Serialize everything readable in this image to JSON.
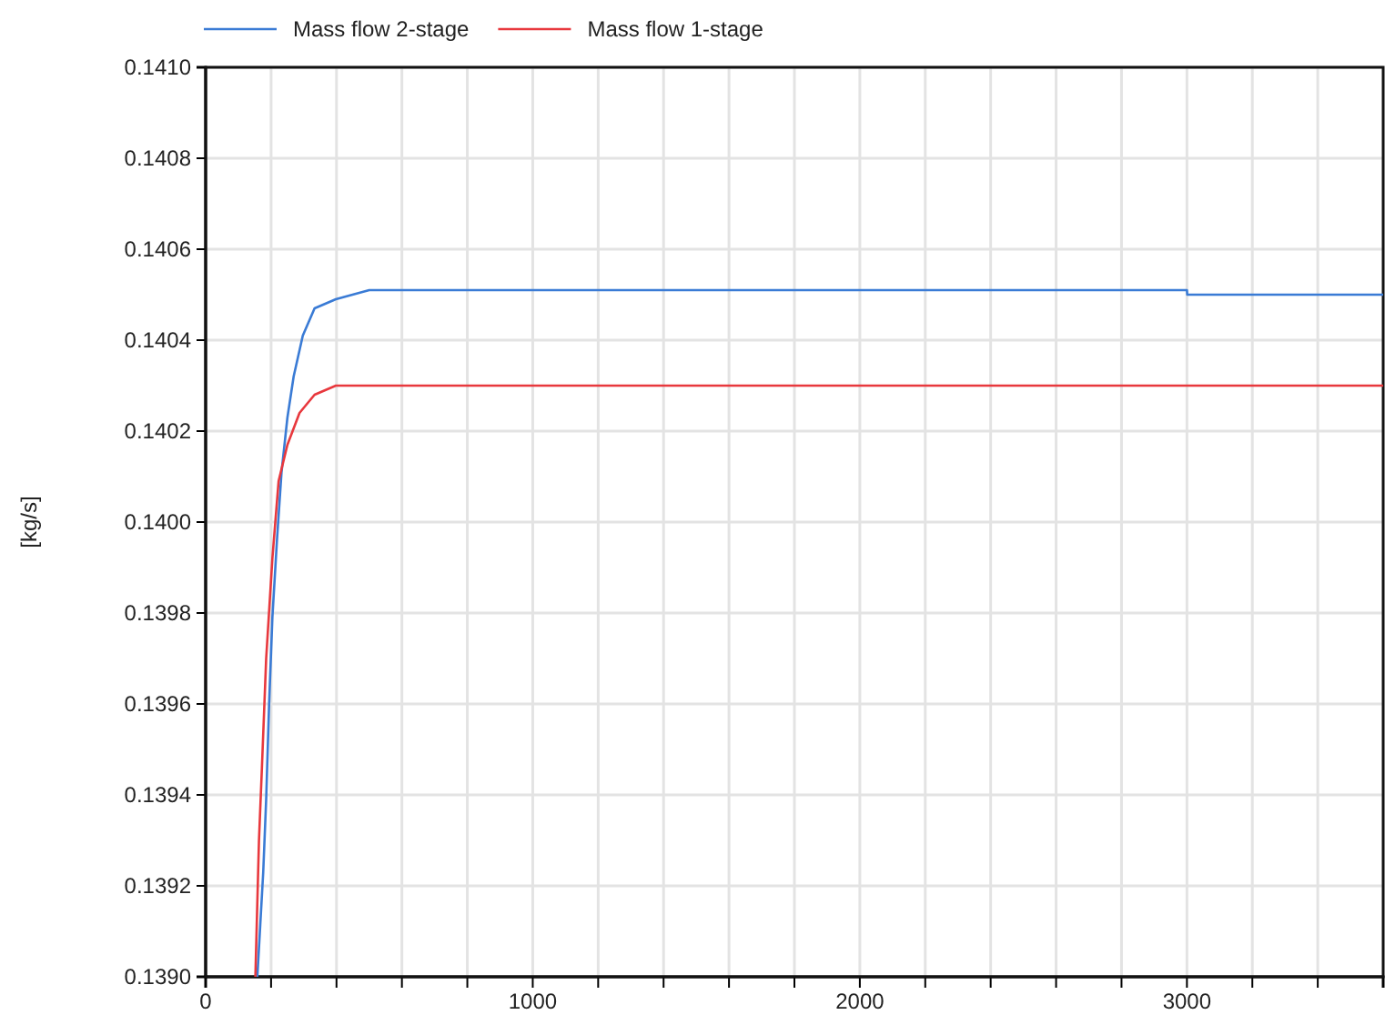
{
  "chart_data": {
    "type": "line",
    "ylabel": "[kg/s]",
    "legend": "top",
    "grid": true,
    "line_style": "solid",
    "marker": "none",
    "xlim": [
      0,
      3600
    ],
    "xticks": [
      0,
      {
        "value": 200,
        "label": null
      },
      {
        "value": 400,
        "label": null
      },
      {
        "value": 600,
        "label": null
      },
      {
        "value": 800,
        "label": null
      },
      1000,
      {
        "value": 1200,
        "label": null
      },
      {
        "value": 1400,
        "label": null
      },
      {
        "value": 1600,
        "label": null
      },
      {
        "value": 1800,
        "label": null
      },
      2000,
      {
        "value": 2200,
        "label": null
      },
      {
        "value": 2400,
        "label": null
      },
      {
        "value": 2600,
        "label": null
      },
      {
        "value": 2800,
        "label": null
      },
      3000,
      {
        "value": 3200,
        "label": null
      },
      {
        "value": 3400,
        "label": null
      }
    ],
    "ylim": [
      0.139,
      0.141
    ],
    "yticks": [
      {
        "value": 0.139,
        "label": "0.1390"
      },
      {
        "value": 0.1392,
        "label": "0.1392"
      },
      {
        "value": 0.1394,
        "label": "0.1394"
      },
      {
        "value": 0.1396,
        "label": "0.1396"
      },
      {
        "value": 0.1398,
        "label": "0.1398"
      },
      {
        "value": 0.14,
        "label": "0.1400"
      },
      {
        "value": 0.1402,
        "label": "0.1402"
      },
      {
        "value": 0.1404,
        "label": "0.1404"
      },
      {
        "value": 0.1406,
        "label": "0.1406"
      },
      {
        "value": 0.1408,
        "label": "0.1408"
      },
      {
        "value": 0.141,
        "label": "0.1410"
      }
    ],
    "series": [
      {
        "name": "Mass flow 2-stage",
        "color": "#3a7bd5",
        "x": [
          158,
          176,
          185,
          194,
          204,
          218,
          232,
          250,
          269,
          297,
          333,
          398,
          500,
          3000,
          3001,
          3600
        ],
        "values": [
          0.139,
          0.13923,
          0.13939,
          0.1396,
          0.13979,
          0.13996,
          0.14011,
          0.14023,
          0.14032,
          0.14041,
          0.14047,
          0.14049,
          0.14051,
          0.14051,
          0.1405,
          0.1405
        ]
      },
      {
        "name": "Mass flow 1-stage",
        "color": "#e8383d",
        "x": [
          152,
          163,
          172,
          185,
          204,
          223,
          250,
          287,
          333,
          398,
          537,
          3600
        ],
        "values": [
          0.139,
          0.1393,
          0.13946,
          0.1397,
          0.13992,
          0.14009,
          0.14017,
          0.14024,
          0.14028,
          0.1403,
          0.1403,
          0.1403
        ]
      }
    ]
  }
}
